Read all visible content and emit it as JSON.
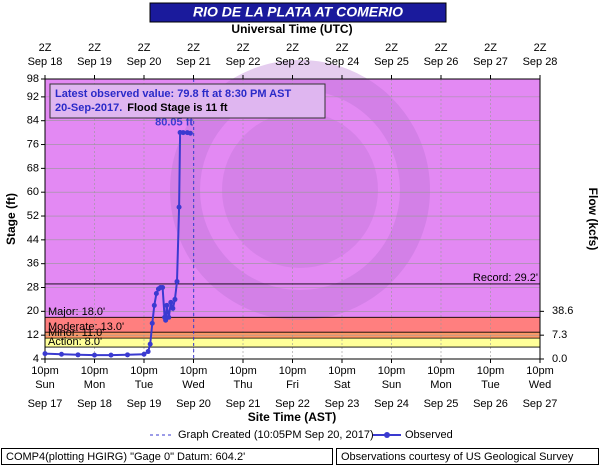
{
  "chart_data": {
    "type": "line",
    "title": "RIO DE LA PLATA AT COMERIO",
    "top_axis_label": "Universal Time (UTC)",
    "x_axis_label": "Site Time (AST)",
    "y_axis_label": "Stage (ft)",
    "y2_axis_label": "Flow (kcfs)",
    "xlim": [
      "Sep 17 10pm",
      "Sep 27 10pm"
    ],
    "ylim": [
      4,
      98
    ],
    "yticks": [
      4,
      12,
      20,
      28,
      36,
      44,
      52,
      60,
      68,
      76,
      84,
      92,
      98
    ],
    "grid": true,
    "xticks": [
      {
        "time": "10pm",
        "day": "Sun",
        "date": "Sep 17"
      },
      {
        "time": "10pm",
        "day": "Mon",
        "date": "Sep 18"
      },
      {
        "time": "10pm",
        "day": "Tue",
        "date": "Sep 19"
      },
      {
        "time": "10pm",
        "day": "Wed",
        "date": "Sep 20"
      },
      {
        "time": "10pm",
        "day": "Thu",
        "date": "Sep 21"
      },
      {
        "time": "10pm",
        "day": "Fri",
        "date": "Sep 22"
      },
      {
        "time": "10pm",
        "day": "Sat",
        "date": "Sep 23"
      },
      {
        "time": "10pm",
        "day": "Sun",
        "date": "Sep 24"
      },
      {
        "time": "10pm",
        "day": "Mon",
        "date": "Sep 25"
      },
      {
        "time": "10pm",
        "day": "Tue",
        "date": "Sep 26"
      },
      {
        "time": "10pm",
        "day": "Wed",
        "date": "Sep 27"
      }
    ],
    "top_xticks": [
      {
        "time": "2Z",
        "date": "Sep 18"
      },
      {
        "time": "2Z",
        "date": "Sep 19"
      },
      {
        "time": "2Z",
        "date": "Sep 20"
      },
      {
        "time": "2Z",
        "date": "Sep 21"
      },
      {
        "time": "2Z",
        "date": "Sep 22"
      },
      {
        "time": "2Z",
        "date": "Sep 23"
      },
      {
        "time": "2Z",
        "date": "Sep 24"
      },
      {
        "time": "2Z",
        "date": "Sep 25"
      },
      {
        "time": "2Z",
        "date": "Sep 26"
      },
      {
        "time": "2Z",
        "date": "Sep 27"
      },
      {
        "time": "2Z",
        "date": "Sep 28"
      }
    ],
    "y2ticks": [
      {
        "stage": 4,
        "flow": {
          "value": 0,
          "label": "0.0"
        }
      },
      {
        "stage": 12,
        "flow": 7.3
      },
      {
        "stage": 20,
        "flow": 38.6
      }
    ],
    "flood_categories": [
      {
        "label": "Action: 8.0'",
        "stage": 8.0,
        "color": "#ffff99"
      },
      {
        "label": "Minor: 11.0'",
        "stage": 11.0,
        "color": "#ff9966"
      },
      {
        "label": "Moderate: 13.0'",
        "stage": 13.0,
        "color": "#ff7f7f"
      },
      {
        "label": "Major: 18.0'",
        "stage": 18.0,
        "color": "#e389f3"
      }
    ],
    "record": {
      "label": "Record: 29.2'",
      "stage": 29.2
    },
    "annotation": {
      "line1": "Latest observed value: 79.8 ft at 8:30 PM AST",
      "line2": "20-Sep-2017.",
      "line3": "Flood Stage is 11 ft"
    },
    "graph_created": {
      "label": "Graph Created (10:05PM Sep 20, 2017)",
      "x": "Sep 20 10:05pm"
    },
    "footer_left": "COMP4(plotting HGIRG) \"Gage 0\" Datum: 604.2'",
    "footer_right": "Observations courtesy of US Geological Survey",
    "x": [
      "Sep 17 10pm",
      "Sep 18 6am",
      "Sep 18 2pm",
      "Sep 18 10pm",
      "Sep 19 6am",
      "Sep 19 2pm",
      "Sep 19 10pm",
      "Sep 20 12am",
      "Sep 20 1am",
      "Sep 20 2am",
      "Sep 20 3am",
      "Sep 20 4am",
      "Sep 20 5am",
      "Sep 20 6am",
      "Sep 20 7am",
      "Sep 20 8am",
      "Sep 20 8:30am",
      "Sep 20 9am",
      "Sep 20 10am",
      "Sep 20 11am",
      "Sep 20 12pm",
      "Sep 20 1pm",
      "Sep 20 2pm",
      "Sep 20 3pm",
      "Sep 20 3:30pm",
      "Sep 20 5pm",
      "Sep 20 7pm",
      "Sep 20 8:30pm"
    ],
    "series": [
      {
        "name": "Observed",
        "color": "#3a3ad0",
        "values": [
          5.8,
          5.6,
          5.4,
          5.3,
          5.3,
          5.4,
          5.6,
          6.5,
          9,
          16,
          22,
          26,
          27.5,
          28,
          28,
          18,
          17,
          22,
          18,
          23,
          21,
          24,
          30,
          55,
          80.05,
          80,
          80,
          79.8
        ],
        "value_labels": [
          null,
          null,
          null,
          null,
          null,
          null,
          null,
          null,
          null,
          null,
          null,
          null,
          null,
          null,
          null,
          null,
          null,
          null,
          null,
          null,
          null,
          null,
          null,
          null,
          "80.05 ft",
          null,
          null,
          null
        ]
      }
    ]
  }
}
